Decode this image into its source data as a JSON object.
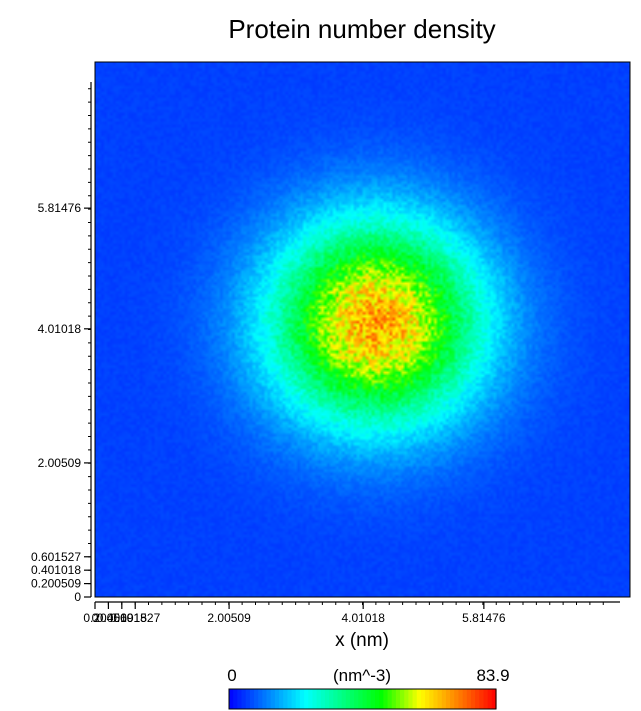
{
  "chart_data": {
    "type": "heatmap",
    "title": "Protein number density",
    "xlabel": "x (nm)",
    "ylabel": "",
    "x_tick_labels": [
      {
        "value": 0,
        "label": "0"
      },
      {
        "value": 0.200509,
        "label": "0.200509"
      },
      {
        "value": 0.401018,
        "label": "0.401018"
      },
      {
        "value": 0.601527,
        "label": "0.601527"
      },
      {
        "value": 2.00509,
        "label": "2.00509"
      },
      {
        "value": 4.01018,
        "label": "4.01018"
      },
      {
        "value": 5.81476,
        "label": "5.81476"
      }
    ],
    "y_tick_labels": [
      {
        "value": 0,
        "label": "0"
      },
      {
        "value": 0.200509,
        "label": "0.200509"
      },
      {
        "value": 0.401018,
        "label": "0.401018"
      },
      {
        "value": 0.601527,
        "label": "0.601527"
      },
      {
        "value": 2.00509,
        "label": "2.00509"
      },
      {
        "value": 4.01018,
        "label": "4.01018"
      },
      {
        "value": 5.81476,
        "label": "5.81476"
      }
    ],
    "xlim": [
      0,
      8.0
    ],
    "ylim": [
      0,
      8.0
    ],
    "minor_tick_step": 0.2,
    "grid": false,
    "colorbar": {
      "min_label": "0",
      "max_label": "83.9",
      "unit_label": "(nm^-3)",
      "min": 0,
      "max": 83.9,
      "colors": [
        "#0000ff",
        "#0080ff",
        "#00ffff",
        "#00ff80",
        "#00ff00",
        "#ffff00",
        "#ff8000",
        "#ff0000"
      ]
    },
    "density_field": {
      "description": "",
      "peak_value": 83.9,
      "peak_x": 4.2,
      "peak_y": 4.1,
      "background_value": 6.0,
      "spread_x": 1.45,
      "spread_y": 1.4
    }
  }
}
